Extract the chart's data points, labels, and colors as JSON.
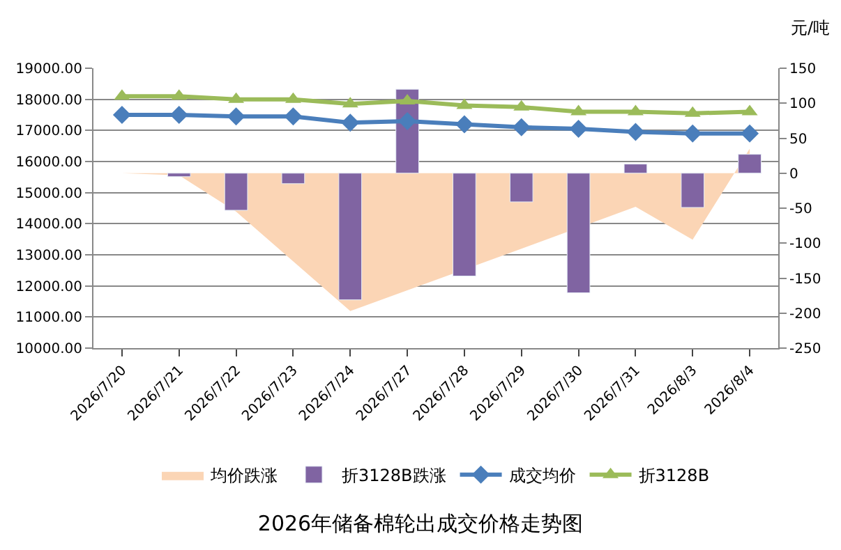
{
  "chart_data": {
    "type": "bar",
    "title": "2026年储备棉轮出成交价格走势图",
    "annotations": [
      "元/吨"
    ],
    "categories": [
      "2026/7/20",
      "2026/7/21",
      "2026/7/22",
      "2026/7/23",
      "2026/7/24",
      "2026/7/27",
      "2026/7/28",
      "2026/7/29",
      "2026/7/30",
      "2026/7/31",
      "2026/8/3",
      "2026/8/4"
    ],
    "series": [
      {
        "name": "均价跌涨",
        "type": "area",
        "axis": "y2",
        "color": "#fbd5b5",
        "values": [
          0,
          -3,
          -55,
          null,
          -197,
          null,
          null,
          -108,
          null,
          -48,
          -95,
          35
        ]
      },
      {
        "name": "折3128B跌涨",
        "axis": "y2",
        "color": "#8064a2",
        "values": [
          null,
          -5,
          -53,
          -15,
          -181,
          120,
          -147,
          -41,
          -171,
          13,
          -49,
          27
        ]
      },
      {
        "name": "成交均价",
        "type": "line",
        "marker": "diamond",
        "color": "#4a7ebb",
        "values": [
          17500,
          17500,
          17450,
          17450,
          17250,
          17300,
          17200,
          17100,
          17050,
          16950,
          16900,
          16900
        ]
      },
      {
        "name": "折3128B",
        "type": "line",
        "marker": "triangle",
        "color": "#9bbb59",
        "values": [
          18100,
          18100,
          18000,
          18000,
          17850,
          17950,
          17800,
          17750,
          17600,
          17600,
          17550,
          17600
        ]
      }
    ],
    "ylim": [
      10000,
      19000
    ],
    "yticks": [
      {
        "value": 10000,
        "label": "10000.00"
      },
      {
        "value": 11000,
        "label": "11000.00"
      },
      {
        "value": 12000,
        "label": "12000.00"
      },
      {
        "value": 13000,
        "label": "13000.00"
      },
      {
        "value": 14000,
        "label": "14000.00"
      },
      {
        "value": 15000,
        "label": "15000.00"
      },
      {
        "value": 16000,
        "label": "16000.00"
      },
      {
        "value": 17000,
        "label": "17000.00"
      },
      {
        "value": 18000,
        "label": "18000.00"
      },
      {
        "value": 19000,
        "label": "19000.00"
      }
    ],
    "y2lim": [
      -250,
      150
    ],
    "y2ticks": [
      -250,
      -200,
      -150,
      -100,
      -50,
      0,
      50,
      100,
      150
    ],
    "grid": "y",
    "legend": "bottom"
  }
}
